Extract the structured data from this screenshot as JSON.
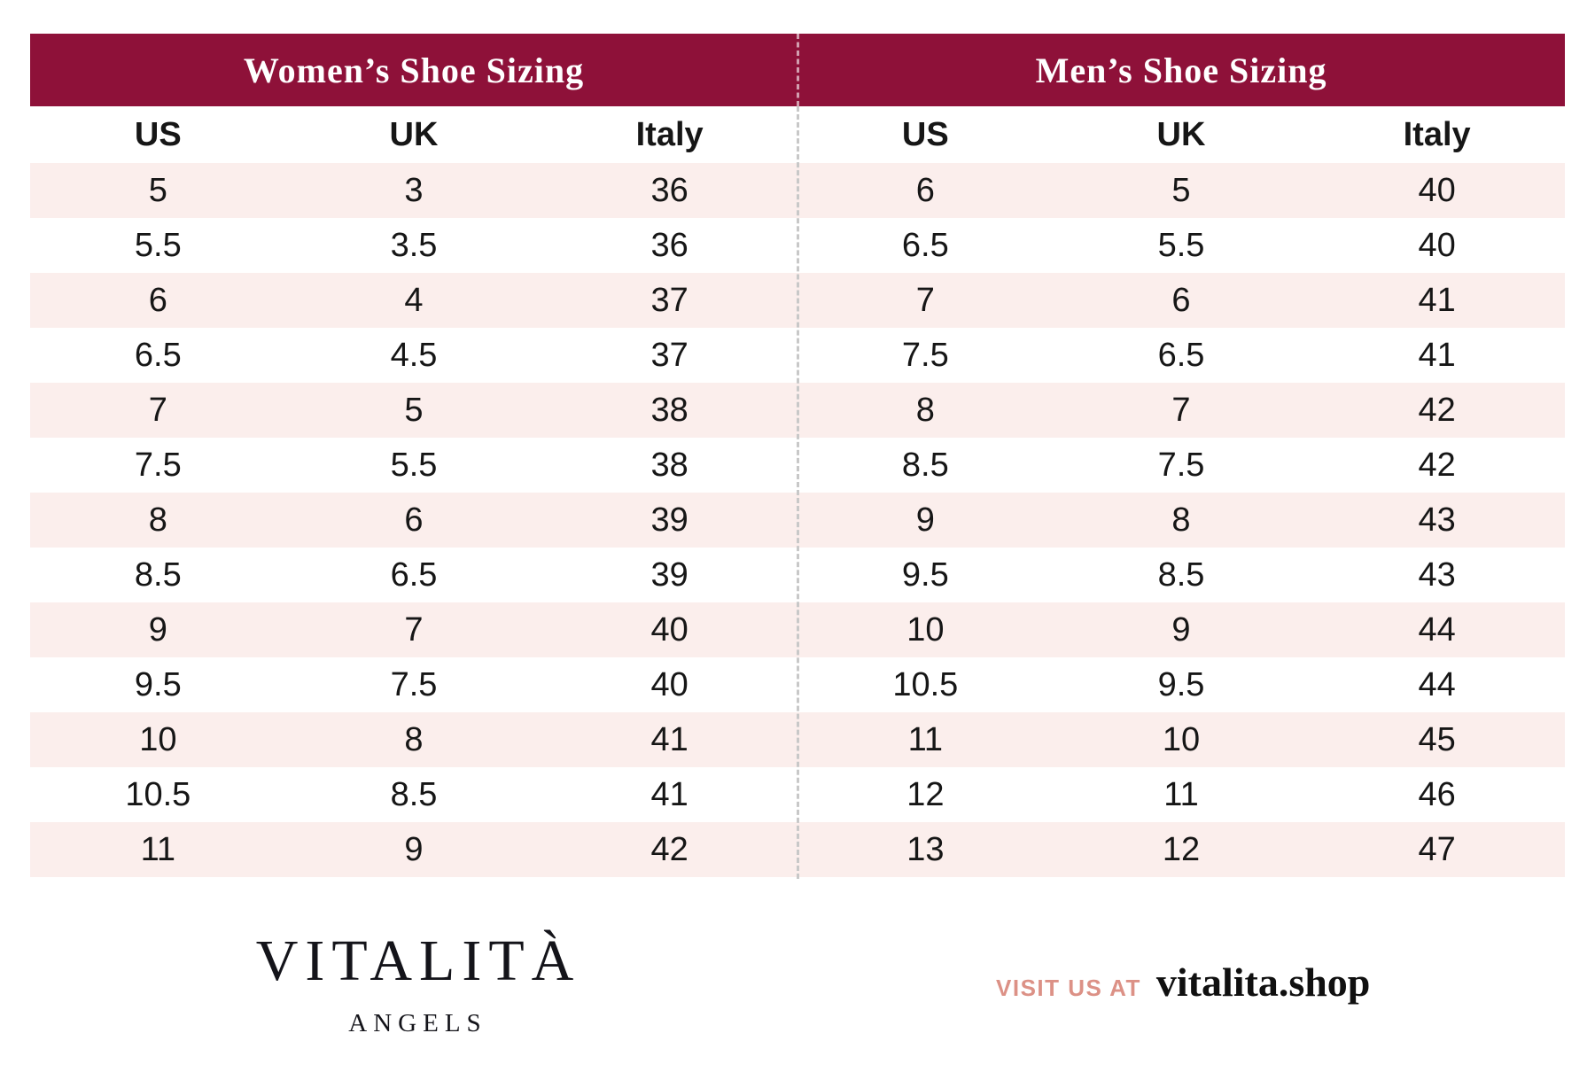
{
  "colors": {
    "header_bg": "#8e1139",
    "row_stripe": "#fbeeec",
    "divider": "#c8c8c8",
    "accent": "#dc9186",
    "header_text": "#ffffff",
    "body_text": "#161616"
  },
  "women": {
    "title": "Women’s Shoe Sizing",
    "columns": [
      "US",
      "UK",
      "Italy"
    ],
    "rows": [
      [
        "5",
        "3",
        "36"
      ],
      [
        "5.5",
        "3.5",
        "36"
      ],
      [
        "6",
        "4",
        "37"
      ],
      [
        "6.5",
        "4.5",
        "37"
      ],
      [
        "7",
        "5",
        "38"
      ],
      [
        "7.5",
        "5.5",
        "38"
      ],
      [
        "8",
        "6",
        "39"
      ],
      [
        "8.5",
        "6.5",
        "39"
      ],
      [
        "9",
        "7",
        "40"
      ],
      [
        "9.5",
        "7.5",
        "40"
      ],
      [
        "10",
        "8",
        "41"
      ],
      [
        "10.5",
        "8.5",
        "41"
      ],
      [
        "11",
        "9",
        "42"
      ]
    ]
  },
  "men": {
    "title": "Men’s Shoe Sizing",
    "columns": [
      "US",
      "UK",
      "Italy"
    ],
    "rows": [
      [
        "6",
        "5",
        "40"
      ],
      [
        "6.5",
        "5.5",
        "40"
      ],
      [
        "7",
        "6",
        "41"
      ],
      [
        "7.5",
        "6.5",
        "41"
      ],
      [
        "8",
        "7",
        "42"
      ],
      [
        "8.5",
        "7.5",
        "42"
      ],
      [
        "9",
        "8",
        "43"
      ],
      [
        "9.5",
        "8.5",
        "43"
      ],
      [
        "10",
        "9",
        "44"
      ],
      [
        "10.5",
        "9.5",
        "44"
      ],
      [
        "11",
        "10",
        "45"
      ],
      [
        "12",
        "11",
        "46"
      ],
      [
        "13",
        "12",
        "47"
      ]
    ]
  },
  "footer": {
    "brand_name": "VITALITÀ",
    "brand_subtitle": "ANGELS",
    "visit_label": "VISIT US AT",
    "website": "vitalita.shop"
  }
}
